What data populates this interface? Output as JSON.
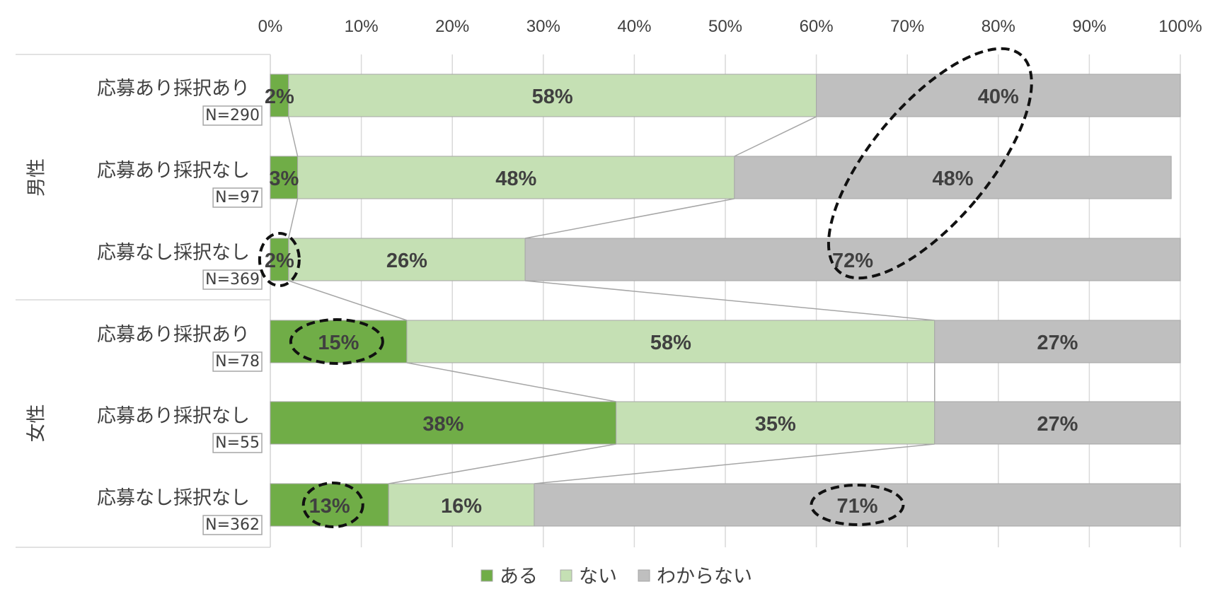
{
  "chart_data": {
    "type": "bar",
    "orientation": "horizontal",
    "stacked": true,
    "title": "",
    "xlabel": "",
    "ylabel": "",
    "xlim": [
      0,
      100
    ],
    "x_ticks": [
      "0%",
      "10%",
      "20%",
      "30%",
      "40%",
      "50%",
      "60%",
      "70%",
      "80%",
      "90%",
      "100%"
    ],
    "grid": true,
    "legend_position": "bottom",
    "groups": [
      "男性",
      "女性"
    ],
    "categories": [
      {
        "group": "男性",
        "label": "応募あり採択あり",
        "n": "N=290"
      },
      {
        "group": "男性",
        "label": "応募あり採択なし",
        "n": "N=97"
      },
      {
        "group": "男性",
        "label": "応募なし採択なし",
        "n": "N=369"
      },
      {
        "group": "女性",
        "label": "応募あり採択あり",
        "n": "N=78"
      },
      {
        "group": "女性",
        "label": "応募あり採択なし",
        "n": "N=55"
      },
      {
        "group": "女性",
        "label": "応募なし採択なし",
        "n": "N=362"
      }
    ],
    "series": [
      {
        "name": "ある",
        "color": "#70ad47",
        "values": [
          2,
          3,
          2,
          15,
          38,
          13
        ],
        "labels": [
          "2%",
          "3%",
          "2%",
          "15%",
          "38%",
          "13%"
        ]
      },
      {
        "name": "ない",
        "color": "#c5e0b4",
        "values": [
          58,
          48,
          26,
          58,
          35,
          16
        ],
        "labels": [
          "58%",
          "48%",
          "26%",
          "58%",
          "35%",
          "16%"
        ]
      },
      {
        "name": "わからない",
        "color": "#bfbfbf",
        "values": [
          40,
          48,
          72,
          27,
          27,
          71
        ],
        "labels": [
          "40%",
          "48%",
          "72%",
          "27%",
          "27%",
          "71%"
        ]
      }
    ],
    "series_lines": true,
    "annotations": [
      {
        "type": "dashed-ellipse",
        "target": "男性 わからない 40%-72%"
      },
      {
        "type": "dashed-ellipse",
        "target": "男性 応募なし採択なし ある 2%"
      },
      {
        "type": "dashed-ellipse",
        "target": "女性 応募あり採択あり ある 15%"
      },
      {
        "type": "dashed-ellipse",
        "target": "女性 応募なし採択なし ある 13%"
      },
      {
        "type": "dashed-ellipse",
        "target": "女性 応募なし採択なし わからない 71%"
      }
    ]
  }
}
